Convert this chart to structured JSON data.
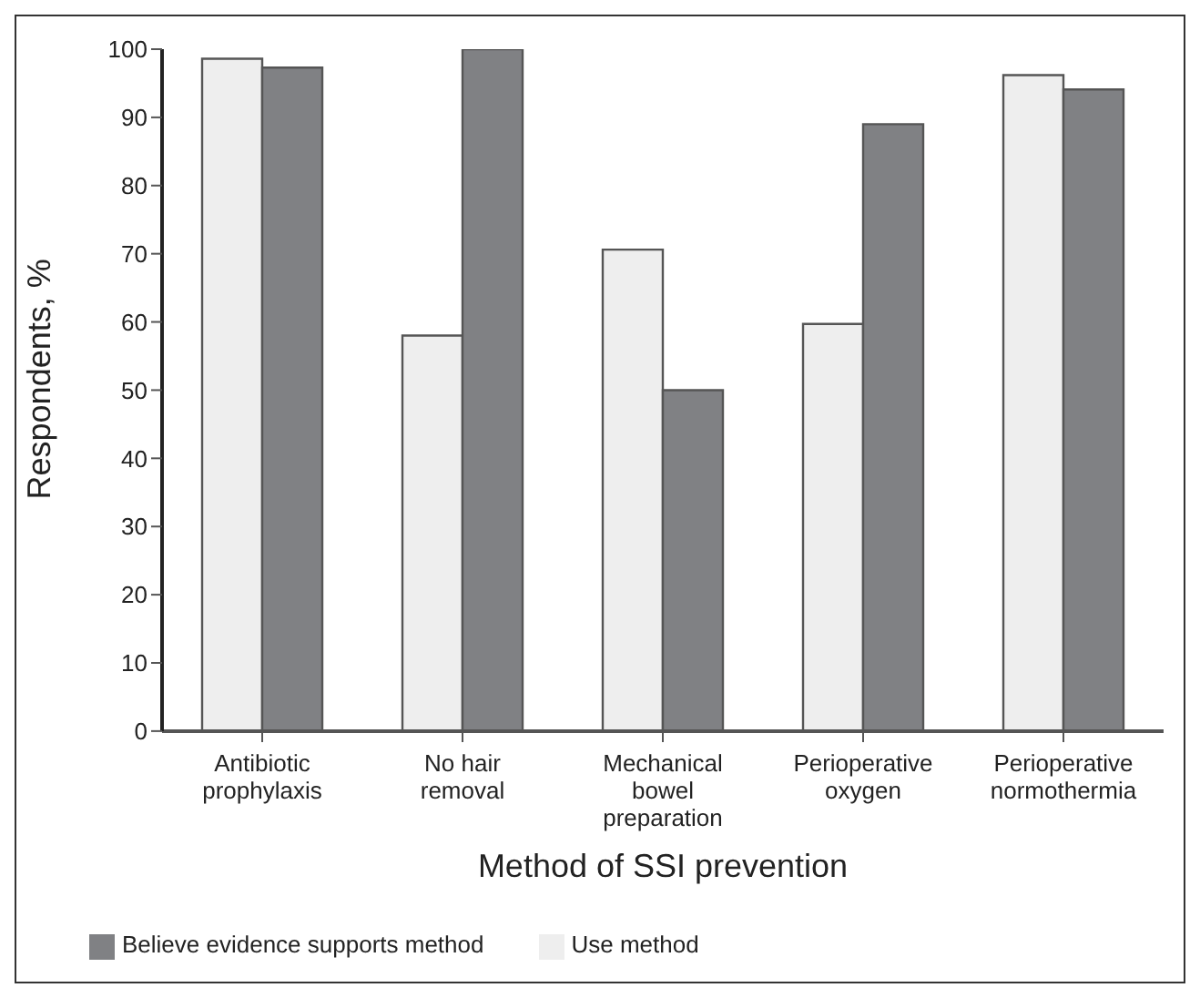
{
  "chart_data": {
    "type": "bar",
    "xlabel": "Method of SSI prevention",
    "ylabel": "Respondents, %",
    "categories": [
      "Antibiotic prophylaxis",
      "No hair removal",
      "Mechanical bowel preparation",
      "Perioperative oxygen",
      "Perioperative normothermia"
    ],
    "series": [
      {
        "name": "Use method",
        "color": "#eeeeee",
        "values": [
          98.6,
          58,
          70.6,
          59.7,
          96.2
        ]
      },
      {
        "name": "Believe evidence supports method",
        "color": "#808184",
        "values": [
          97.3,
          100,
          50,
          89,
          94.1
        ]
      }
    ],
    "ylim": [
      0,
      100
    ],
    "yticks": [
      0,
      10,
      20,
      30,
      40,
      50,
      60,
      70,
      80,
      90,
      100
    ],
    "grid": false,
    "legend": "bottom left"
  }
}
